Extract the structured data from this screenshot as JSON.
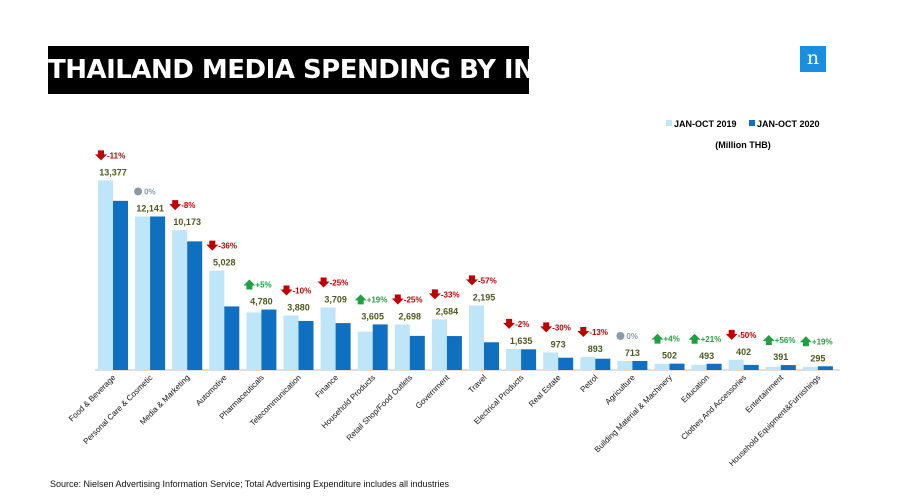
{
  "title": "THAILAND  MEDIA SPENDING BY INDUSTRY",
  "logo_letter": "n",
  "source": "Source: Nielsen Advertising Information Service; Total Advertising Expenditure includes all industries",
  "colors": {
    "series_2019": "#bfe6f8",
    "series_2020": "#0f6fc0",
    "down": "#c00000",
    "up": "#20a040",
    "flat": "#8c9aa8",
    "value_label": "#4d5a1e",
    "logo": "#1a8fe0"
  },
  "chart_data": {
    "type": "bar",
    "unit_label": "(Million THB)",
    "series": [
      {
        "name": "JAN-OCT 2019",
        "values": [
          15000,
          12141,
          11059,
          7856,
          4552,
          4311,
          4946,
          3029,
          3597,
          4007,
          5107,
          1668,
          1390,
          1026,
          713,
          483,
          407,
          804,
          251,
          248
        ]
      },
      {
        "name": "JAN-OCT 2020",
        "values": [
          13377,
          12141,
          10173,
          5028,
          4780,
          3880,
          3709,
          3605,
          2698,
          2684,
          2195,
          1635,
          973,
          893,
          713,
          502,
          493,
          402,
          391,
          295
        ]
      }
    ],
    "categories": [
      "Food & Beverage",
      "Personal Care & Cosmetic",
      "Media & Marketing",
      "Automotive",
      "Pharmaceuticals",
      "Telecommunication",
      "Finance",
      "Household Products",
      "Retail Shop/Food Outlets",
      "Government",
      "Travel",
      "Electrical Products",
      "Real Estate",
      "Petrol",
      "Agriculture",
      "Building Material & Machinery",
      "Education",
      "Clothes And Accessories",
      "Entertainment",
      "Household Equipment&Furnishings"
    ],
    "value_labels": [
      "13,377",
      "12,141",
      "10,173",
      "5,028",
      "4,780",
      "3,880",
      "3,709",
      "3,605",
      "2,698",
      "2,684",
      "2,195",
      "1,635",
      "973",
      "893",
      "713",
      "502",
      "493",
      "402",
      "391",
      "295"
    ],
    "change_labels": [
      "-11%",
      "0%",
      "-8%",
      "-36%",
      "+5%",
      "-10%",
      "-25%",
      "+19%",
      "-25%",
      "-33%",
      "-57%",
      "-2%",
      "-30%",
      "-13%",
      "0%",
      "+4%",
      "+21%",
      "-50%",
      "+56%",
      "+19%"
    ],
    "change_direction": [
      "down",
      "flat",
      "down",
      "down",
      "up",
      "down",
      "down",
      "up",
      "down",
      "down",
      "down",
      "down",
      "down",
      "down",
      "flat",
      "up",
      "up",
      "down",
      "up",
      "up"
    ],
    "ylim": [
      0,
      15500
    ],
    "grid": false,
    "legend_position": "top-right"
  }
}
